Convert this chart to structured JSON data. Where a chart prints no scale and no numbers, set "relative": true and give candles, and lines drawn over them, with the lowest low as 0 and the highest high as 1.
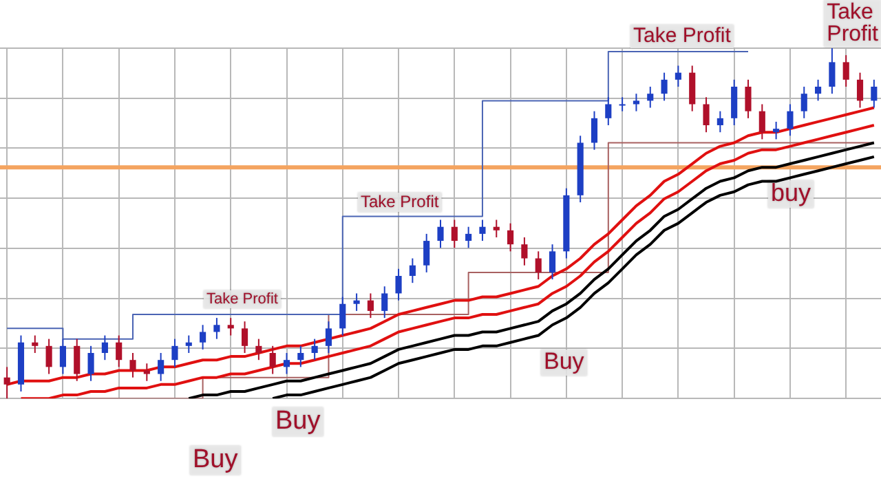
{
  "chart_data": {
    "type": "candlestick",
    "relative": true,
    "grid": true,
    "legend": false,
    "categories": [
      null,
      null,
      null,
      null,
      null,
      null,
      null,
      null,
      null,
      null,
      null,
      null,
      null,
      null,
      null,
      null,
      null,
      null,
      null,
      null,
      null,
      null,
      null,
      null,
      null,
      null,
      null,
      null,
      null,
      null,
      null,
      null,
      null,
      null,
      null,
      null,
      null,
      null,
      null,
      null,
      null,
      null,
      null,
      null,
      null,
      null,
      null,
      null,
      null,
      null,
      null,
      null,
      null,
      null,
      null,
      null,
      null,
      null,
      null,
      null,
      null,
      null,
      null
    ],
    "ohlc": [
      [
        0.06,
        0.09,
        0,
        0.04
      ],
      [
        0.04,
        0.18,
        0.02,
        0.16
      ],
      [
        0.16,
        0.18,
        0.13,
        0.15
      ],
      [
        0.15,
        0.17,
        0.07,
        0.09
      ],
      [
        0.09,
        0.17,
        0.07,
        0.15
      ],
      [
        0.15,
        0.17,
        0.05,
        0.07
      ],
      [
        0.07,
        0.15,
        0.05,
        0.13
      ],
      [
        0.13,
        0.18,
        0.11,
        0.16
      ],
      [
        0.16,
        0.18,
        0.09,
        0.11
      ],
      [
        0.11,
        0.13,
        0.06,
        0.08
      ],
      [
        0.08,
        0.1,
        0.05,
        0.07
      ],
      [
        0.07,
        0.13,
        0.05,
        0.11
      ],
      [
        0.11,
        0.17,
        0.09,
        0.15
      ],
      [
        0.15,
        0.18,
        0.13,
        0.16
      ],
      [
        0.16,
        0.21,
        0.14,
        0.19
      ],
      [
        0.19,
        0.23,
        0.17,
        0.21
      ],
      [
        0.21,
        0.23,
        0.18,
        0.2
      ],
      [
        0.2,
        0.22,
        0.13,
        0.15
      ],
      [
        0.15,
        0.17,
        0.11,
        0.13
      ],
      [
        0.13,
        0.15,
        0.07,
        0.09
      ],
      [
        0.09,
        0.13,
        0.07,
        0.11
      ],
      [
        0.11,
        0.15,
        0.09,
        0.13
      ],
      [
        0.13,
        0.17,
        0.11,
        0.15
      ],
      [
        0.15,
        0.22,
        0.13,
        0.2
      ],
      [
        0.2,
        0.29,
        0.18,
        0.27
      ],
      [
        0.27,
        0.3,
        0.25,
        0.28
      ],
      [
        0.28,
        0.3,
        0.23,
        0.25
      ],
      [
        0.25,
        0.32,
        0.23,
        0.3
      ],
      [
        0.3,
        0.37,
        0.28,
        0.35
      ],
      [
        0.35,
        0.4,
        0.33,
        0.38
      ],
      [
        0.38,
        0.47,
        0.36,
        0.45
      ],
      [
        0.45,
        0.51,
        0.43,
        0.49
      ],
      [
        0.49,
        0.51,
        0.43,
        0.45
      ],
      [
        0.45,
        0.49,
        0.43,
        0.47
      ],
      [
        0.47,
        0.51,
        0.45,
        0.49
      ],
      [
        0.49,
        0.51,
        0.46,
        0.48
      ],
      [
        0.48,
        0.5,
        0.42,
        0.44
      ],
      [
        0.44,
        0.46,
        0.38,
        0.4
      ],
      [
        0.4,
        0.42,
        0.34,
        0.36
      ],
      [
        0.36,
        0.44,
        0.34,
        0.42
      ],
      [
        0.42,
        0.6,
        0.4,
        0.58
      ],
      [
        0.58,
        0.75,
        0.56,
        0.73
      ],
      [
        0.73,
        0.82,
        0.71,
        0.8
      ],
      [
        0.8,
        0.86,
        0.78,
        0.84
      ],
      [
        0.84,
        0.86,
        0.82,
        0.84
      ],
      [
        0.84,
        0.87,
        0.82,
        0.85
      ],
      [
        0.85,
        0.89,
        0.83,
        0.87
      ],
      [
        0.87,
        0.93,
        0.85,
        0.91
      ],
      [
        0.91,
        0.95,
        0.89,
        0.93
      ],
      [
        0.93,
        0.95,
        0.82,
        0.84
      ],
      [
        0.84,
        0.86,
        0.76,
        0.78
      ],
      [
        0.78,
        0.82,
        0.76,
        0.8
      ],
      [
        0.8,
        0.91,
        0.78,
        0.89
      ],
      [
        0.89,
        0.91,
        0.8,
        0.82
      ],
      [
        0.82,
        0.84,
        0.74,
        0.76
      ],
      [
        0.76,
        0.79,
        0.74,
        0.77
      ],
      [
        0.77,
        0.84,
        0.75,
        0.82
      ],
      [
        0.82,
        0.89,
        0.8,
        0.87
      ],
      [
        0.87,
        0.91,
        0.85,
        0.89
      ],
      [
        0.89,
        1,
        0.87,
        0.96
      ],
      [
        0.96,
        0.98,
        0.89,
        0.91
      ],
      [
        0.91,
        0.93,
        0.83,
        0.85
      ],
      [
        0.85,
        0.91,
        0.83,
        0.89
      ]
    ],
    "colors": [
      "#b0102a",
      "#1d3fc4",
      "#b0102a",
      "#b0102a",
      "#1d3fc4",
      "#b0102a",
      "#1d3fc4",
      "#1d3fc4",
      "#b0102a",
      "#b0102a",
      "#b0102a",
      "#1d3fc4",
      "#1d3fc4",
      "#1d3fc4",
      "#1d3fc4",
      "#1d3fc4",
      "#b0102a",
      "#b0102a",
      "#b0102a",
      "#b0102a",
      "#1d3fc4",
      "#1d3fc4",
      "#1d3fc4",
      "#1d3fc4",
      "#1d3fc4",
      "#1d3fc4",
      "#b0102a",
      "#1d3fc4",
      "#1d3fc4",
      "#1d3fc4",
      "#1d3fc4",
      "#1d3fc4",
      "#b0102a",
      "#1d3fc4",
      "#1d3fc4",
      "#b0102a",
      "#b0102a",
      "#b0102a",
      "#b0102a",
      "#1d3fc4",
      "#1d3fc4",
      "#1d3fc4",
      "#1d3fc4",
      "#1d3fc4",
      "#1d3fc4",
      "#1d3fc4",
      "#1d3fc4",
      "#1d3fc4",
      "#1d3fc4",
      "#b0102a",
      "#b0102a",
      "#1d3fc4",
      "#1d3fc4",
      "#b0102a",
      "#b0102a",
      "#1d3fc4",
      "#1d3fc4",
      "#1d3fc4",
      "#1d3fc4",
      "#1d3fc4",
      "#b0102a",
      "#b0102a",
      "#1d3fc4"
    ],
    "series": [
      {
        "type": "line",
        "color": "#e01010",
        "values": [
          0.04,
          0.05,
          0.05,
          0.05,
          0.06,
          0.06,
          0.07,
          0.07,
          0.08,
          0.08,
          0.08,
          0.09,
          0.09,
          0.1,
          0.11,
          0.11,
          0.12,
          0.12,
          0.13,
          0.14,
          0.15,
          0.15,
          0.16,
          0.17,
          0.18,
          0.19,
          0.2,
          0.22,
          0.24,
          0.25,
          0.26,
          0.27,
          0.28,
          0.28,
          0.29,
          0.29,
          0.3,
          0.31,
          0.32,
          0.35,
          0.37,
          0.4,
          0.44,
          0.47,
          0.51,
          0.55,
          0.58,
          0.62,
          0.64,
          0.67,
          0.7,
          0.72,
          0.73,
          0.75,
          0.76,
          0.76,
          0.77,
          0.78,
          0.79,
          0.8,
          0.81,
          0.82,
          0.83
        ]
      },
      {
        "type": "line",
        "color": "#e01010",
        "values": [
          null,
          0,
          0,
          0,
          0.01,
          0.01,
          0.02,
          0.02,
          0.03,
          0.03,
          0.03,
          0.04,
          0.04,
          0.05,
          0.06,
          0.06,
          0.07,
          0.07,
          0.08,
          0.09,
          0.1,
          0.1,
          0.11,
          0.12,
          0.13,
          0.14,
          0.15,
          0.17,
          0.19,
          0.2,
          0.21,
          0.22,
          0.23,
          0.23,
          0.24,
          0.24,
          0.25,
          0.26,
          0.27,
          0.3,
          0.32,
          0.35,
          0.39,
          0.42,
          0.46,
          0.5,
          0.53,
          0.57,
          0.59,
          0.62,
          0.65,
          0.67,
          0.68,
          0.7,
          0.71,
          0.71,
          0.72,
          0.73,
          0.74,
          0.75,
          0.76,
          0.77,
          0.78
        ]
      },
      {
        "type": "line",
        "color": "#000000",
        "values": [
          null,
          null,
          null,
          null,
          null,
          null,
          null,
          null,
          null,
          null,
          null,
          null,
          null,
          0,
          0.01,
          0.01,
          0.02,
          0.02,
          0.03,
          0.04,
          0.05,
          0.05,
          0.06,
          0.07,
          0.08,
          0.09,
          0.1,
          0.12,
          0.14,
          0.15,
          0.16,
          0.17,
          0.18,
          0.18,
          0.19,
          0.19,
          0.2,
          0.21,
          0.22,
          0.25,
          0.27,
          0.3,
          0.34,
          0.37,
          0.41,
          0.45,
          0.48,
          0.52,
          0.54,
          0.57,
          0.6,
          0.62,
          0.63,
          0.65,
          0.66,
          0.66,
          0.67,
          0.68,
          0.69,
          0.7,
          0.71,
          0.72,
          0.73
        ]
      },
      {
        "type": "line",
        "color": "#000000",
        "values": [
          null,
          null,
          null,
          null,
          null,
          null,
          null,
          null,
          null,
          null,
          null,
          null,
          null,
          null,
          null,
          null,
          null,
          null,
          null,
          0,
          0.01,
          0.01,
          0.02,
          0.03,
          0.04,
          0.05,
          0.06,
          0.08,
          0.1,
          0.11,
          0.12,
          0.13,
          0.14,
          0.14,
          0.15,
          0.15,
          0.16,
          0.17,
          0.18,
          0.21,
          0.23,
          0.26,
          0.3,
          0.33,
          0.37,
          0.41,
          0.44,
          0.48,
          0.5,
          0.53,
          0.56,
          0.58,
          0.59,
          0.61,
          0.62,
          0.62,
          0.63,
          0.64,
          0.65,
          0.66,
          0.67,
          0.68,
          0.69
        ]
      },
      {
        "type": "step",
        "color": "#4a64b4",
        "values": [
          0.2,
          0.2,
          0.2,
          0.2,
          0.2,
          0.17,
          0.17,
          0.17,
          0.17,
          0.17,
          0.24,
          0.24,
          0.24,
          0.24,
          0.24,
          0.24,
          0.24,
          0.24,
          0.24,
          0.24,
          0.24,
          0.24,
          0.24,
          0.24,
          0.24,
          0.52,
          0.52,
          0.52,
          0.52,
          0.52,
          0.52,
          0.52,
          0.52,
          0.52,
          0.52,
          0.85,
          0.85,
          0.85,
          0.85,
          0.85,
          0.85,
          0.85,
          0.85,
          0.85,
          0.99,
          0.99,
          0.99,
          0.99,
          0.99,
          0.99,
          0.99,
          0.99,
          0.99,
          0.99,
          null,
          null,
          null,
          null,
          null,
          null,
          null,
          null,
          null
        ]
      },
      {
        "type": "step",
        "color": "#a86060",
        "values": [
          null,
          null,
          null,
          null,
          null,
          0,
          0,
          0,
          0,
          0,
          0,
          0,
          0,
          0,
          0,
          0.06,
          0.06,
          0.06,
          0.06,
          0.06,
          0.06,
          0.06,
          0.06,
          0.06,
          0.24,
          0.24,
          0.24,
          0.24,
          0.24,
          0.24,
          0.24,
          0.24,
          0.24,
          0.24,
          0.36,
          0.36,
          0.36,
          0.36,
          0.36,
          0.36,
          0.36,
          0.36,
          0.36,
          0.36,
          0.73,
          0.73,
          0.73,
          0.73,
          0.73,
          0.73,
          0.73,
          0.73,
          0.73,
          0.73,
          0.73,
          0.73,
          0.73,
          0.73,
          0.73,
          0.73,
          0.73,
          0.73,
          0.73
        ]
      }
    ],
    "ref_lines": [
      {
        "axis": "y",
        "value": 0.66,
        "color": "#f4a460"
      }
    ],
    "annotations": [
      "Take Profit",
      "Take Profit",
      "Take Profit",
      "Take Profit",
      "Buy",
      "Buy",
      "Buy",
      "buy"
    ]
  }
}
